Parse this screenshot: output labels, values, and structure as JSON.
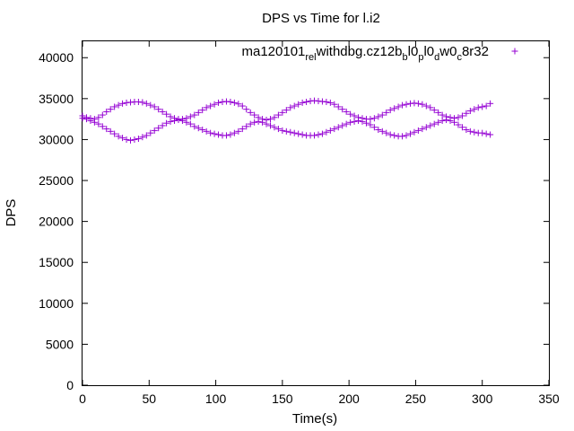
{
  "chart_data": {
    "type": "scatter",
    "title": "DPS vs Time for l.i2",
    "xlabel": "Time(s)",
    "ylabel": "DPS",
    "xlim": [
      0,
      350
    ],
    "ylim": [
      0,
      42000
    ],
    "xticks": [
      0,
      50,
      100,
      150,
      200,
      250,
      300,
      350
    ],
    "yticks": [
      0,
      5000,
      10000,
      15000,
      20000,
      25000,
      30000,
      35000,
      40000
    ],
    "grid": false,
    "legend_position": "top-right",
    "marker": "+",
    "series": [
      {
        "name": "ma120101_rel_withdbg.cz12b_bl0_pl0_dw0_c8r32",
        "legend_text": {
          "base": "ma120101",
          "parts": [
            [
              "rel",
              "sub"
            ],
            [
              "withdbg.cz12b",
              "base"
            ],
            [
              "b",
              "sub"
            ],
            [
              "l0",
              "base"
            ],
            [
              "p",
              "sub"
            ],
            [
              "l0",
              "base"
            ],
            [
              "d",
              "sub"
            ],
            [
              "w0",
              "base"
            ],
            [
              "c",
              "sub"
            ],
            [
              "8r32",
              "base"
            ]
          ]
        },
        "color": "#9400d3",
        "upper": [
          [
            0,
            32900
          ],
          [
            3,
            32700
          ],
          [
            6,
            32600
          ],
          [
            9,
            32500
          ],
          [
            12,
            32700
          ],
          [
            15,
            33000
          ],
          [
            18,
            33400
          ],
          [
            21,
            33700
          ],
          [
            24,
            34000
          ],
          [
            27,
            34200
          ],
          [
            30,
            34400
          ],
          [
            33,
            34500
          ],
          [
            36,
            34550
          ],
          [
            39,
            34600
          ],
          [
            42,
            34600
          ],
          [
            45,
            34550
          ],
          [
            48,
            34400
          ],
          [
            51,
            34200
          ],
          [
            54,
            34000
          ],
          [
            57,
            33700
          ],
          [
            60,
            33400
          ],
          [
            63,
            33100
          ],
          [
            66,
            32800
          ],
          [
            69,
            32600
          ],
          [
            72,
            32500
          ],
          [
            75,
            32500
          ],
          [
            78,
            32600
          ],
          [
            81,
            32800
          ],
          [
            84,
            33000
          ],
          [
            87,
            33300
          ],
          [
            90,
            33600
          ],
          [
            93,
            33900
          ],
          [
            96,
            34100
          ],
          [
            99,
            34300
          ],
          [
            102,
            34500
          ],
          [
            105,
            34600
          ],
          [
            108,
            34650
          ],
          [
            111,
            34600
          ],
          [
            114,
            34500
          ],
          [
            117,
            34350
          ],
          [
            120,
            34100
          ],
          [
            123,
            33700
          ],
          [
            126,
            33300
          ],
          [
            129,
            33000
          ],
          [
            132,
            32700
          ],
          [
            135,
            32500
          ],
          [
            138,
            32400
          ],
          [
            141,
            32500
          ],
          [
            144,
            32700
          ],
          [
            147,
            33000
          ],
          [
            150,
            33300
          ],
          [
            153,
            33600
          ],
          [
            156,
            33900
          ],
          [
            159,
            34100
          ],
          [
            162,
            34300
          ],
          [
            165,
            34500
          ],
          [
            168,
            34600
          ],
          [
            171,
            34700
          ],
          [
            174,
            34750
          ],
          [
            177,
            34700
          ],
          [
            180,
            34650
          ],
          [
            183,
            34600
          ],
          [
            186,
            34500
          ],
          [
            189,
            34300
          ],
          [
            192,
            34000
          ],
          [
            195,
            33700
          ],
          [
            198,
            33400
          ],
          [
            201,
            33100
          ],
          [
            204,
            32900
          ],
          [
            207,
            32700
          ],
          [
            210,
            32600
          ],
          [
            213,
            32500
          ],
          [
            216,
            32500
          ],
          [
            219,
            32600
          ],
          [
            222,
            32800
          ],
          [
            225,
            33000
          ],
          [
            228,
            33300
          ],
          [
            231,
            33600
          ],
          [
            234,
            33800
          ],
          [
            237,
            34000
          ],
          [
            240,
            34200
          ],
          [
            243,
            34300
          ],
          [
            246,
            34400
          ],
          [
            249,
            34450
          ],
          [
            252,
            34400
          ],
          [
            255,
            34300
          ],
          [
            258,
            34100
          ],
          [
            261,
            33900
          ],
          [
            264,
            33600
          ],
          [
            267,
            33300
          ],
          [
            270,
            33000
          ],
          [
            273,
            32800
          ],
          [
            276,
            32700
          ],
          [
            279,
            32600
          ],
          [
            282,
            32700
          ],
          [
            285,
            32900
          ],
          [
            288,
            33200
          ],
          [
            291,
            33500
          ],
          [
            294,
            33700
          ],
          [
            297,
            33900
          ],
          [
            300,
            34000
          ],
          [
            303,
            34100
          ],
          [
            306,
            34400
          ]
        ],
        "lower": [
          [
            0,
            32600
          ],
          [
            3,
            32500
          ],
          [
            6,
            32300
          ],
          [
            9,
            32100
          ],
          [
            12,
            31900
          ],
          [
            15,
            31600
          ],
          [
            18,
            31300
          ],
          [
            21,
            31000
          ],
          [
            24,
            30700
          ],
          [
            27,
            30400
          ],
          [
            30,
            30200
          ],
          [
            33,
            30000
          ],
          [
            36,
            29900
          ],
          [
            39,
            30000
          ],
          [
            42,
            30100
          ],
          [
            45,
            30300
          ],
          [
            48,
            30500
          ],
          [
            51,
            30800
          ],
          [
            54,
            31100
          ],
          [
            57,
            31400
          ],
          [
            60,
            31700
          ],
          [
            63,
            32000
          ],
          [
            66,
            32200
          ],
          [
            69,
            32300
          ],
          [
            72,
            32400
          ],
          [
            75,
            32300
          ],
          [
            78,
            32100
          ],
          [
            81,
            31900
          ],
          [
            84,
            31600
          ],
          [
            87,
            31400
          ],
          [
            90,
            31200
          ],
          [
            93,
            31000
          ],
          [
            96,
            30800
          ],
          [
            99,
            30700
          ],
          [
            102,
            30600
          ],
          [
            105,
            30500
          ],
          [
            108,
            30500
          ],
          [
            111,
            30600
          ],
          [
            114,
            30800
          ],
          [
            117,
            31000
          ],
          [
            120,
            31300
          ],
          [
            123,
            31600
          ],
          [
            126,
            31900
          ],
          [
            129,
            32100
          ],
          [
            132,
            32200
          ],
          [
            135,
            32100
          ],
          [
            138,
            31900
          ],
          [
            141,
            31700
          ],
          [
            144,
            31500
          ],
          [
            147,
            31300
          ],
          [
            150,
            31100
          ],
          [
            153,
            31000
          ],
          [
            156,
            30900
          ],
          [
            159,
            30800
          ],
          [
            162,
            30700
          ],
          [
            165,
            30600
          ],
          [
            168,
            30500
          ],
          [
            171,
            30500
          ],
          [
            174,
            30500
          ],
          [
            177,
            30600
          ],
          [
            180,
            30700
          ],
          [
            183,
            30900
          ],
          [
            186,
            31100
          ],
          [
            189,
            31300
          ],
          [
            192,
            31500
          ],
          [
            195,
            31700
          ],
          [
            198,
            31900
          ],
          [
            201,
            32100
          ],
          [
            204,
            32200
          ],
          [
            207,
            32300
          ],
          [
            210,
            32200
          ],
          [
            213,
            32000
          ],
          [
            216,
            31800
          ],
          [
            219,
            31500
          ],
          [
            222,
            31200
          ],
          [
            225,
            31000
          ],
          [
            228,
            30800
          ],
          [
            231,
            30600
          ],
          [
            234,
            30500
          ],
          [
            237,
            30400
          ],
          [
            240,
            30400
          ],
          [
            243,
            30500
          ],
          [
            246,
            30700
          ],
          [
            249,
            30900
          ],
          [
            252,
            31100
          ],
          [
            255,
            31300
          ],
          [
            258,
            31500
          ],
          [
            261,
            31700
          ],
          [
            264,
            31900
          ],
          [
            267,
            32100
          ],
          [
            270,
            32300
          ],
          [
            273,
            32400
          ],
          [
            276,
            32300
          ],
          [
            279,
            32100
          ],
          [
            282,
            31800
          ],
          [
            285,
            31500
          ],
          [
            288,
            31200
          ],
          [
            291,
            31000
          ],
          [
            294,
            30900
          ],
          [
            297,
            30800
          ],
          [
            300,
            30800
          ],
          [
            303,
            30700
          ],
          [
            306,
            30600
          ]
        ]
      }
    ]
  }
}
